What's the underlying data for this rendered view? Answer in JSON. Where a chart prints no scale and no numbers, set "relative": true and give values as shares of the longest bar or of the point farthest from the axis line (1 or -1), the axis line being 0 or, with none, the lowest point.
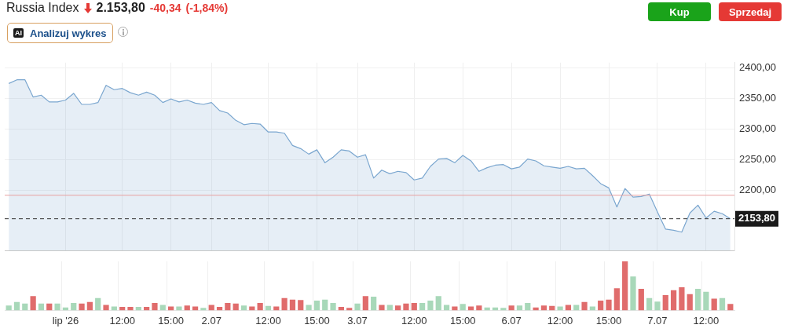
{
  "chart_data": [
    {
      "type": "area",
      "title": "Russia Index",
      "annotations": [
        "2.153,80",
        "-40,34",
        "(-1,84%)",
        "Analizuj wykres",
        "Kup",
        "Sprzedaj",
        "AI"
      ],
      "categories": [
        null,
        null,
        null,
        null,
        null,
        null,
        null,
        null,
        null,
        null,
        null,
        null,
        null,
        null,
        null,
        null,
        null,
        null,
        null,
        null,
        null,
        null,
        null,
        null,
        null,
        null,
        null,
        null,
        null,
        null,
        null,
        null,
        null,
        null,
        null,
        null,
        null,
        null,
        null,
        null,
        null,
        null,
        null,
        null,
        null,
        null,
        null,
        null,
        null,
        null,
        null,
        null,
        null,
        null,
        null,
        null,
        null,
        null,
        null,
        null,
        null,
        null,
        null,
        null,
        null,
        null,
        null,
        null,
        null,
        null,
        null,
        null,
        null,
        null,
        null,
        null,
        null,
        null,
        null,
        null,
        null,
        null,
        null,
        null,
        null,
        null,
        null,
        null,
        null,
        null
      ],
      "series": [
        {
          "color": "#7aa6cf",
          "values": [
            2374,
            2380,
            2380,
            2352,
            2355,
            2344,
            2344,
            2347,
            2358,
            2340,
            2340,
            2343,
            2371,
            2364,
            2366,
            2359,
            2355,
            2360,
            2355,
            2343,
            2349,
            2344,
            2347,
            2342,
            2340,
            2343,
            2330,
            2326,
            2314,
            2307,
            2309,
            2308,
            2295,
            2295,
            2293,
            2273,
            2268,
            2259,
            2266,
            2245,
            2254,
            2266,
            2264,
            2254,
            2258,
            2220,
            2233,
            2227,
            2231,
            2229,
            2217,
            2220,
            2239,
            2251,
            2252,
            2245,
            2257,
            2248,
            2231,
            2237,
            2241,
            2242,
            2235,
            2238,
            2251,
            2248,
            2240,
            2238,
            2236,
            2239,
            2235,
            2236,
            2224,
            2211,
            2204,
            2173,
            2203,
            2189,
            2190,
            2194,
            2165,
            2137,
            2135,
            2132,
            2163,
            2176,
            2155,
            2166,
            2162,
            2153.8
          ]
        }
      ],
      "ylim": [
        2102,
        2408
      ],
      "yticks": [
        {
          "value": 2200,
          "label": "2200,00"
        },
        {
          "value": 2250,
          "label": "2250,00"
        },
        {
          "value": 2300,
          "label": "2300,00"
        },
        {
          "value": 2350,
          "label": "2350,00"
        },
        {
          "value": 2400,
          "label": "2400,00"
        }
      ],
      "ref_lines": [
        {
          "axis": "y",
          "value": 2192,
          "label": null,
          "color": "#e8a0a0",
          "line_style": "solid"
        },
        {
          "axis": "y",
          "value": 2153.8,
          "label": "2153,80",
          "color": "#333333",
          "line_style": "dashed"
        }
      ],
      "grid": true,
      "marker": "none",
      "legend": false,
      "tick_labels": "y"
    },
    {
      "type": "bar",
      "relative": true,
      "grid": "x",
      "legend": false,
      "categories": [
        null,
        null,
        null,
        null,
        null,
        null,
        null,
        "lip '26",
        null,
        null,
        null,
        null,
        null,
        null,
        "12:00",
        null,
        null,
        null,
        null,
        null,
        "15:00",
        null,
        null,
        null,
        null,
        "2.07",
        null,
        null,
        null,
        null,
        null,
        null,
        "12:00",
        null,
        null,
        null,
        null,
        null,
        "15:00",
        null,
        null,
        null,
        null,
        "3.07",
        null,
        null,
        null,
        null,
        null,
        null,
        "12:00",
        null,
        null,
        null,
        null,
        null,
        "15:00",
        null,
        null,
        null,
        null,
        null,
        "6.07",
        null,
        null,
        null,
        null,
        null,
        "12:00",
        null,
        null,
        null,
        null,
        null,
        "15:00",
        null,
        null,
        null,
        null,
        null,
        "7.07",
        null,
        null,
        null,
        null,
        null,
        "12:00",
        null,
        null,
        null
      ],
      "values": [
        0.1,
        0.17,
        0.14,
        0.29,
        0.14,
        0.14,
        0.14,
        0.06,
        0.15,
        0.14,
        0.17,
        0.25,
        0.11,
        0.08,
        0.07,
        0.07,
        0.07,
        0.07,
        0.15,
        0.11,
        0.08,
        0.08,
        0.1,
        0.08,
        0.05,
        0.11,
        0.07,
        0.15,
        0.14,
        0.1,
        0.08,
        0.15,
        0.09,
        0.08,
        0.25,
        0.22,
        0.21,
        0.11,
        0.2,
        0.22,
        0.15,
        0.07,
        0.05,
        0.14,
        0.29,
        0.28,
        0.11,
        0.11,
        0.1,
        0.14,
        0.15,
        0.15,
        0.2,
        0.29,
        0.11,
        0.08,
        0.13,
        0.08,
        0.1,
        0.06,
        0.06,
        0.05,
        0.1,
        0.1,
        0.15,
        0.06,
        0.1,
        0.09,
        0.08,
        0.11,
        0.11,
        0.17,
        0.08,
        0.2,
        0.22,
        0.45,
        1,
        0.69,
        0.44,
        0.25,
        0.18,
        0.31,
        0.41,
        0.47,
        0.33,
        0.44,
        0.38,
        0.24,
        0.25,
        0.13
      ],
      "colors": [
        "#a8d8b9",
        "#a8d8b9",
        "#a8d8b9",
        "#e06c6c",
        "#a8d8b9",
        "#e06c6c",
        "#a8d8b9",
        "#a8d8b9",
        "#a8d8b9",
        "#e06c6c",
        "#e06c6c",
        "#a8d8b9",
        "#e06c6c",
        "#a8d8b9",
        "#e06c6c",
        "#e06c6c",
        "#a8d8b9",
        "#e06c6c",
        "#e06c6c",
        "#a8d8b9",
        "#e06c6c",
        "#a8d8b9",
        "#e06c6c",
        "#e06c6c",
        "#a8d8b9",
        "#e06c6c",
        "#e06c6c",
        "#e06c6c",
        "#e06c6c",
        "#a8d8b9",
        "#e06c6c",
        "#e06c6c",
        "#a8d8b9",
        "#e06c6c",
        "#e06c6c",
        "#e06c6c",
        "#e06c6c",
        "#a8d8b9",
        "#a8d8b9",
        "#a8d8b9",
        "#a8d8b9",
        "#e06c6c",
        "#e06c6c",
        "#a8d8b9",
        "#e06c6c",
        "#a8d8b9",
        "#e06c6c",
        "#a8d8b9",
        "#e06c6c",
        "#e06c6c",
        "#e06c6c",
        "#a8d8b9",
        "#a8d8b9",
        "#a8d8b9",
        "#a8d8b9",
        "#e06c6c",
        "#a8d8b9",
        "#e06c6c",
        "#e06c6c",
        "#a8d8b9",
        "#a8d8b9",
        "#a8d8b9",
        "#e06c6c",
        "#a8d8b9",
        "#a8d8b9",
        "#e06c6c",
        "#e06c6c",
        "#e06c6c",
        "#a8d8b9",
        "#e06c6c",
        "#a8d8b9",
        "#e06c6c",
        "#a8d8b9",
        "#e06c6c",
        "#e06c6c",
        "#e06c6c",
        "#e06c6c",
        "#a8d8b9",
        "#e06c6c",
        "#a8d8b9",
        "#a8d8b9",
        "#e06c6c",
        "#e06c6c",
        "#e06c6c",
        "#e06c6c",
        "#a8d8b9",
        "#a8d8b9",
        "#e06c6c",
        "#a8d8b9",
        "#e06c6c"
      ]
    }
  ]
}
